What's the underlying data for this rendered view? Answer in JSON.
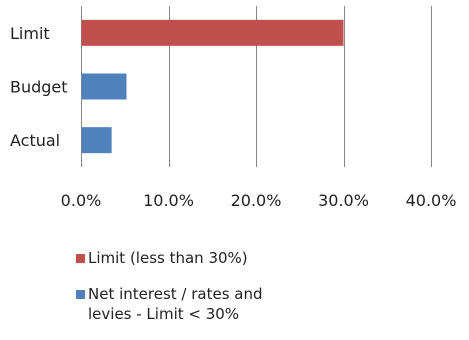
{
  "chart_data": {
    "type": "bar",
    "orientation": "horizontal",
    "categories": [
      "Limit",
      "Budget",
      "Actual"
    ],
    "series": [
      {
        "name": "Limit (less than 30%)",
        "color": "#c0504d",
        "values": [
          30.0,
          null,
          null
        ]
      },
      {
        "name": "Net interest / rates and\nlevies  - Limit < 30%",
        "color": "#4f81bd",
        "values": [
          null,
          5.2,
          3.5
        ]
      }
    ],
    "xlim": [
      0,
      40
    ],
    "xticks": [
      "0.0%",
      "10.0%",
      "20.0%",
      "30.0%",
      "40.0%"
    ],
    "grid": true,
    "legend_position": "bottom"
  }
}
